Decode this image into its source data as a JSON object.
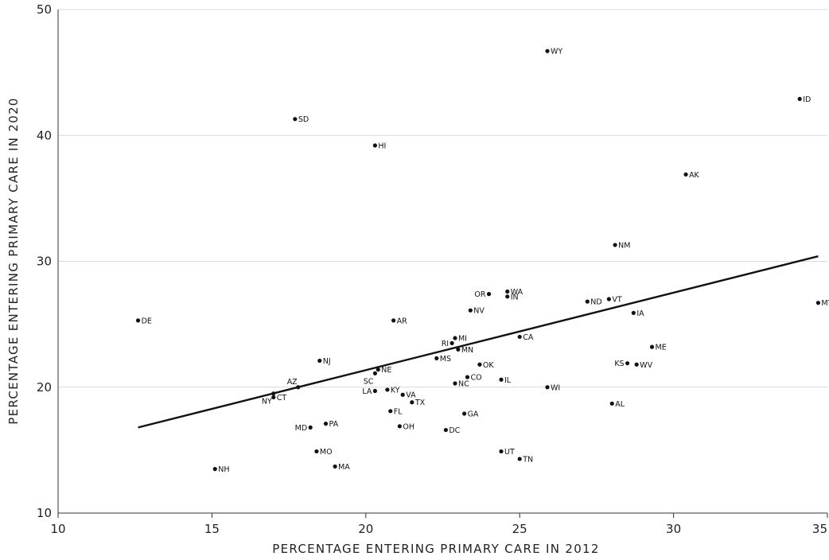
{
  "chart_data": {
    "type": "scatter",
    "xlabel": "PERCENTAGE ENTERING PRIMARY CARE IN 2012",
    "ylabel": "PERCENTAGE ENTERING PRIMARY CARE IN 2020",
    "xlim": [
      10,
      35
    ],
    "ylim": [
      10,
      50
    ],
    "x_ticks": [
      "10",
      "15",
      "20",
      "25",
      "30",
      "35"
    ],
    "y_ticks": [
      "10",
      "20",
      "30",
      "40",
      "50"
    ],
    "grid": "horizontal",
    "colors": {
      "points": "#111111",
      "trend": "#111111",
      "grid": "#d9d9d9"
    },
    "trendline": {
      "x": [
        12.6,
        34.7
      ],
      "y": [
        16.8,
        30.4
      ]
    },
    "points": [
      {
        "label": "WY",
        "x": 25.9,
        "y": 46.7,
        "anchor": "right"
      },
      {
        "label": "ID",
        "x": 34.1,
        "y": 42.9,
        "anchor": "right"
      },
      {
        "label": "SD",
        "x": 17.7,
        "y": 41.3,
        "anchor": "right"
      },
      {
        "label": "HI",
        "x": 20.3,
        "y": 39.2,
        "anchor": "right"
      },
      {
        "label": "AK",
        "x": 30.4,
        "y": 36.9,
        "anchor": "right"
      },
      {
        "label": "NM",
        "x": 28.1,
        "y": 31.3,
        "anchor": "right"
      },
      {
        "label": "WA",
        "x": 24.6,
        "y": 27.6,
        "anchor": "right"
      },
      {
        "label": "OR",
        "x": 24.0,
        "y": 27.4,
        "anchor": "left"
      },
      {
        "label": "IN",
        "x": 24.6,
        "y": 27.2,
        "anchor": "right"
      },
      {
        "label": "VT",
        "x": 27.9,
        "y": 27.0,
        "anchor": "right"
      },
      {
        "label": "ND",
        "x": 27.2,
        "y": 26.8,
        "anchor": "right"
      },
      {
        "label": "MT",
        "x": 34.7,
        "y": 26.7,
        "anchor": "right"
      },
      {
        "label": "NV",
        "x": 23.4,
        "y": 26.1,
        "anchor": "right"
      },
      {
        "label": "IA",
        "x": 28.7,
        "y": 25.9,
        "anchor": "right"
      },
      {
        "label": "DE",
        "x": 12.6,
        "y": 25.3,
        "anchor": "right"
      },
      {
        "label": "AR",
        "x": 20.9,
        "y": 25.3,
        "anchor": "right"
      },
      {
        "label": "CA",
        "x": 25.0,
        "y": 24.0,
        "anchor": "right"
      },
      {
        "label": "MI",
        "x": 22.9,
        "y": 23.9,
        "anchor": "right"
      },
      {
        "label": "RI",
        "x": 22.8,
        "y": 23.5,
        "anchor": "left"
      },
      {
        "label": "ME",
        "x": 29.3,
        "y": 23.2,
        "anchor": "right"
      },
      {
        "label": "MN",
        "x": 23.0,
        "y": 23.0,
        "anchor": "right"
      },
      {
        "label": "MS",
        "x": 22.3,
        "y": 22.3,
        "anchor": "right"
      },
      {
        "label": "NJ",
        "x": 18.5,
        "y": 22.1,
        "anchor": "right"
      },
      {
        "label": "KS",
        "x": 28.5,
        "y": 21.9,
        "anchor": "left"
      },
      {
        "label": "WV",
        "x": 28.8,
        "y": 21.8,
        "anchor": "right"
      },
      {
        "label": "OK",
        "x": 23.7,
        "y": 21.8,
        "anchor": "right"
      },
      {
        "label": "NE",
        "x": 20.4,
        "y": 21.4,
        "anchor": "right"
      },
      {
        "label": "SC",
        "x": 20.3,
        "y": 21.1,
        "anchor": "below-left"
      },
      {
        "label": "CO",
        "x": 23.3,
        "y": 20.8,
        "anchor": "right"
      },
      {
        "label": "IL",
        "x": 24.4,
        "y": 20.6,
        "anchor": "right"
      },
      {
        "label": "NC",
        "x": 22.9,
        "y": 20.3,
        "anchor": "right"
      },
      {
        "label": "AZ",
        "x": 17.8,
        "y": 20.0,
        "anchor": "above-left"
      },
      {
        "label": "WI",
        "x": 25.9,
        "y": 20.0,
        "anchor": "right"
      },
      {
        "label": "KY",
        "x": 20.7,
        "y": 19.8,
        "anchor": "right"
      },
      {
        "label": "LA",
        "x": 20.3,
        "y": 19.7,
        "anchor": "left"
      },
      {
        "label": "VA",
        "x": 21.2,
        "y": 19.4,
        "anchor": "right"
      },
      {
        "label": "CT",
        "x": 17.0,
        "y": 19.2,
        "anchor": "right"
      },
      {
        "label": "NY",
        "x": 17.0,
        "y": 19.5,
        "anchor": "below-left"
      },
      {
        "label": "TX",
        "x": 21.5,
        "y": 18.8,
        "anchor": "right"
      },
      {
        "label": "AL",
        "x": 28.0,
        "y": 18.7,
        "anchor": "right"
      },
      {
        "label": "FL",
        "x": 20.8,
        "y": 18.1,
        "anchor": "right"
      },
      {
        "label": "GA",
        "x": 23.2,
        "y": 17.9,
        "anchor": "right"
      },
      {
        "label": "PA",
        "x": 18.7,
        "y": 17.1,
        "anchor": "right"
      },
      {
        "label": "OH",
        "x": 21.1,
        "y": 16.9,
        "anchor": "right"
      },
      {
        "label": "MD",
        "x": 18.2,
        "y": 16.8,
        "anchor": "left"
      },
      {
        "label": "DC",
        "x": 22.6,
        "y": 16.6,
        "anchor": "right"
      },
      {
        "label": "MO",
        "x": 18.4,
        "y": 14.9,
        "anchor": "right"
      },
      {
        "label": "UT",
        "x": 24.4,
        "y": 14.9,
        "anchor": "right"
      },
      {
        "label": "TN",
        "x": 25.0,
        "y": 14.3,
        "anchor": "right"
      },
      {
        "label": "MA",
        "x": 19.0,
        "y": 13.7,
        "anchor": "right"
      },
      {
        "label": "NH",
        "x": 15.1,
        "y": 13.5,
        "anchor": "right"
      }
    ]
  }
}
